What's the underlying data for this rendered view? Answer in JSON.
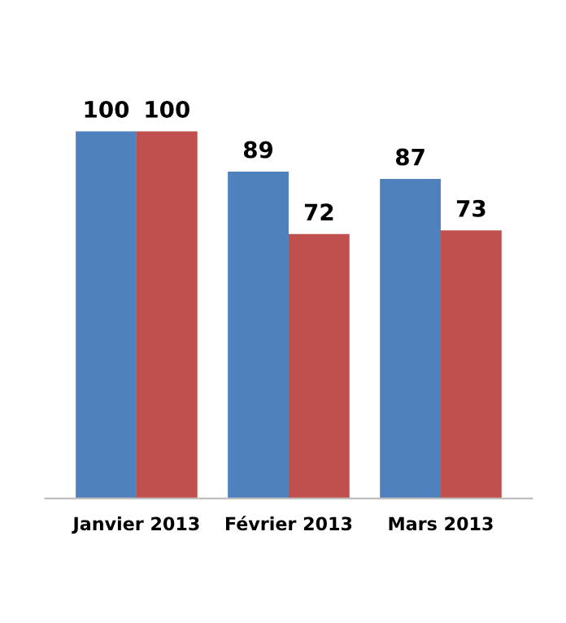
{
  "chart_data": {
    "type": "bar",
    "categories": [
      "Janvier 2013",
      "Février 2013",
      "Mars 2013"
    ],
    "series": [
      {
        "color": "#4f81bd",
        "values": [
          100,
          89,
          87
        ]
      },
      {
        "color": "#c0504d",
        "values": [
          100,
          72,
          73
        ]
      }
    ],
    "data_labels": true,
    "grid": false,
    "legend": false
  }
}
